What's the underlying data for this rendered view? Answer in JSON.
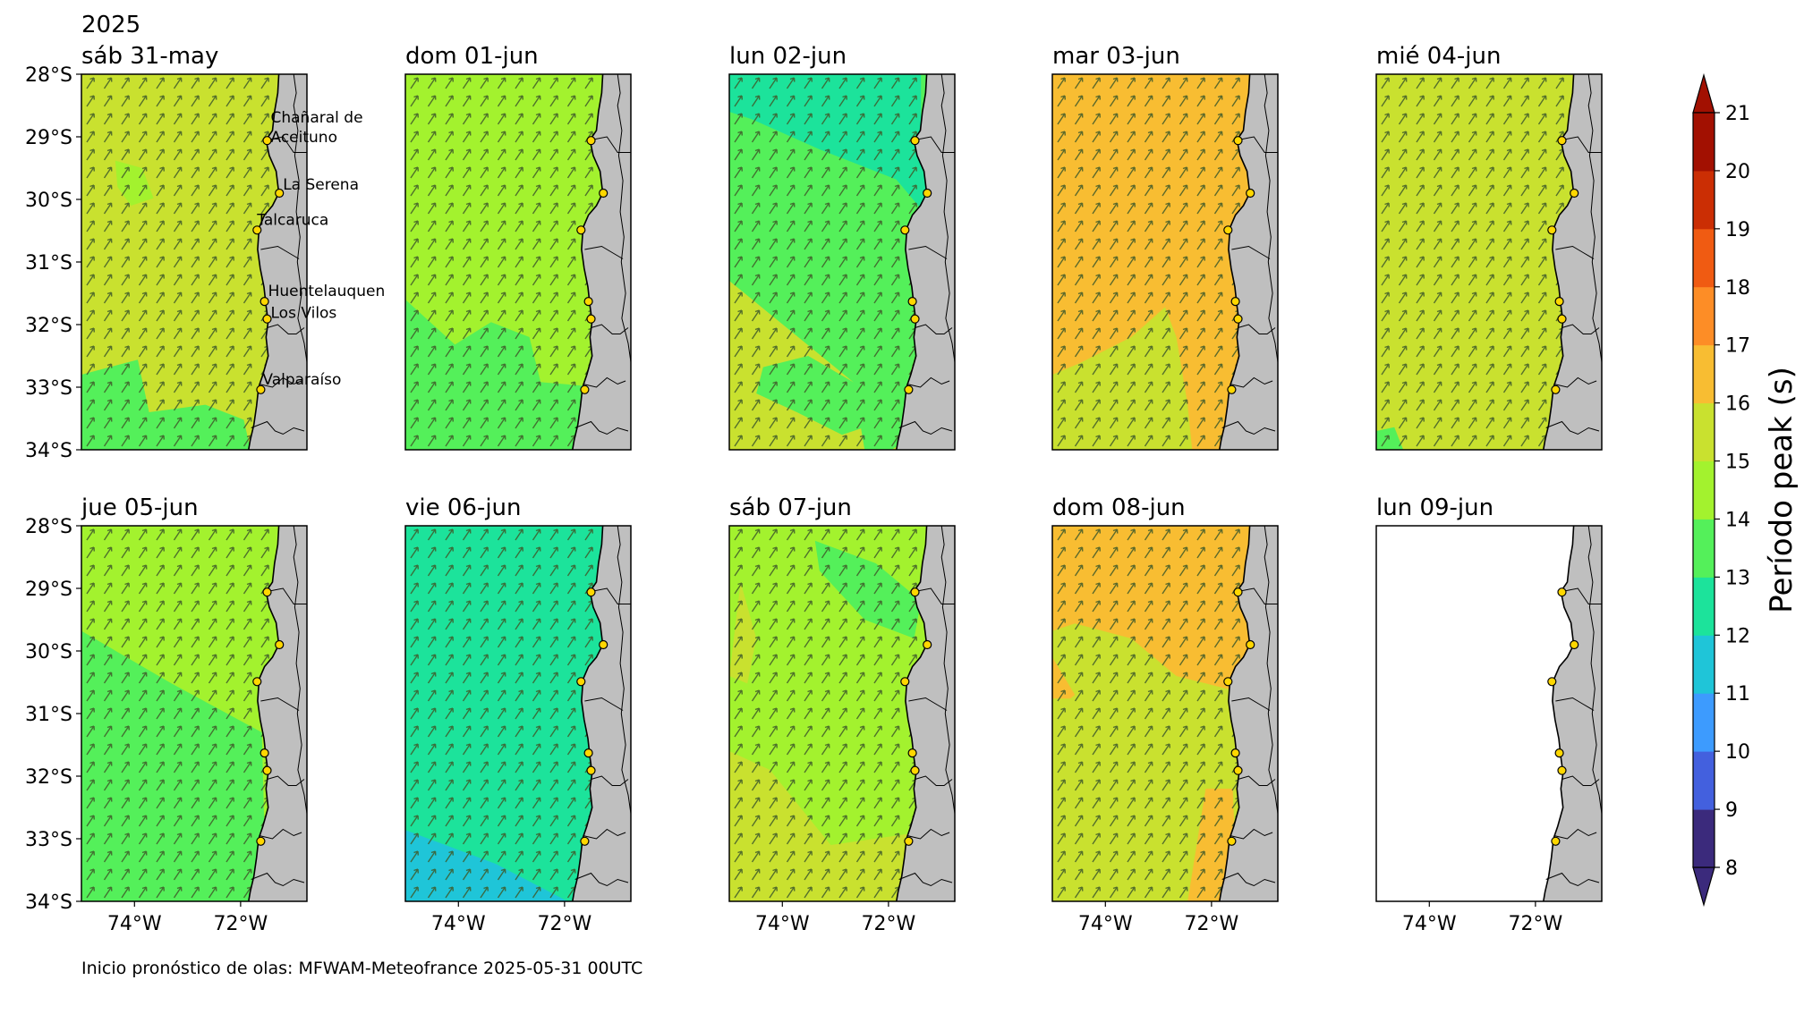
{
  "year": "2025",
  "panels": [
    {
      "title": "sáb 31-may",
      "fill": "#c9e12f",
      "zones": [
        {
          "color": "#54f05a",
          "pts": [
            [
              0,
              0.8
            ],
            [
              0.25,
              0.76
            ],
            [
              0.3,
              0.9
            ],
            [
              0.55,
              0.88
            ],
            [
              0.72,
              0.92
            ],
            [
              0.75,
              1
            ],
            [
              0,
              1
            ]
          ]
        },
        {
          "color": "#a3f22e",
          "pts": [
            [
              0.15,
              0.23
            ],
            [
              0.27,
              0.25
            ],
            [
              0.32,
              0.33
            ],
            [
              0.22,
              0.35
            ],
            [
              0.16,
              0.3
            ]
          ]
        }
      ]
    },
    {
      "title": "dom 01-jun",
      "fill": "#a3f22e",
      "zones": [
        {
          "color": "#54f05a",
          "pts": [
            [
              0,
              0.6
            ],
            [
              0.22,
              0.72
            ],
            [
              0.38,
              0.66
            ],
            [
              0.55,
              0.7
            ],
            [
              0.6,
              0.82
            ],
            [
              0.8,
              0.83
            ],
            [
              0.82,
              1
            ],
            [
              0,
              1
            ]
          ]
        }
      ]
    },
    {
      "title": "lun 02-jun",
      "fill": "#c9e12f",
      "zones": [
        {
          "color": "#54f05a",
          "pts": [
            [
              0,
              0
            ],
            [
              0.88,
              0
            ],
            [
              0.86,
              0.4
            ],
            [
              0.9,
              0.6
            ],
            [
              0.8,
              0.8
            ],
            [
              0.85,
              0.95
            ],
            [
              0.72,
              1
            ],
            [
              0.6,
              1
            ],
            [
              0.55,
              0.82
            ],
            [
              0,
              0.55
            ]
          ]
        },
        {
          "color": "#1ce39b",
          "pts": [
            [
              0,
              0
            ],
            [
              0.85,
              0
            ],
            [
              0.85,
              0.12
            ],
            [
              0.88,
              0.38
            ],
            [
              0.74,
              0.28
            ],
            [
              0.4,
              0.2
            ],
            [
              0.1,
              0.12
            ],
            [
              0,
              0.1
            ]
          ]
        },
        {
          "color": "#54f05a",
          "pts": [
            [
              0.15,
              0.78
            ],
            [
              0.35,
              0.75
            ],
            [
              0.55,
              0.82
            ],
            [
              0.65,
              0.93
            ],
            [
              0.5,
              0.96
            ],
            [
              0.3,
              0.9
            ],
            [
              0.12,
              0.85
            ]
          ]
        }
      ]
    },
    {
      "title": "mar 03-jun",
      "fill": "#f8bd32",
      "zones": [
        {
          "color": "#c9e12f",
          "pts": [
            [
              0,
              0.8
            ],
            [
              0.12,
              0.77
            ],
            [
              0.35,
              0.7
            ],
            [
              0.5,
              0.62
            ],
            [
              0.55,
              0.7
            ],
            [
              0.6,
              0.88
            ],
            [
              0.62,
              1
            ],
            [
              0,
              1
            ]
          ]
        }
      ]
    },
    {
      "title": "mié 04-jun",
      "fill": "#c9e12f",
      "zones": [
        {
          "color": "#54f05a",
          "pts": [
            [
              0,
              0.95
            ],
            [
              0.08,
              0.94
            ],
            [
              0.12,
              1
            ],
            [
              0,
              1
            ]
          ]
        }
      ]
    },
    {
      "title": "jue 05-jun",
      "fill": "#a3f22e",
      "zones": [
        {
          "color": "#54f05a",
          "pts": [
            [
              0,
              0.28
            ],
            [
              0.4,
              0.42
            ],
            [
              0.8,
              0.55
            ],
            [
              0.82,
              1
            ],
            [
              0,
              1
            ]
          ]
        }
      ]
    },
    {
      "title": "vie 06-jun",
      "fill": "#1ce39b",
      "zones": [
        {
          "color": "#1fc5d8",
          "pts": [
            [
              0,
              0.81
            ],
            [
              0.4,
              0.9
            ],
            [
              0.72,
              1
            ],
            [
              0,
              1
            ]
          ]
        }
      ]
    },
    {
      "title": "sáb 07-jun",
      "fill": "#a3f22e",
      "zones": [
        {
          "color": "#54f05a",
          "pts": [
            [
              0.38,
              0.04
            ],
            [
              0.65,
              0.1
            ],
            [
              0.85,
              0.2
            ],
            [
              0.82,
              0.3
            ],
            [
              0.6,
              0.25
            ],
            [
              0.4,
              0.12
            ]
          ]
        },
        {
          "color": "#c9e12f",
          "pts": [
            [
              0,
              0.6
            ],
            [
              0.18,
              0.65
            ],
            [
              0.45,
              0.85
            ],
            [
              0.8,
              0.82
            ],
            [
              0.82,
              1
            ],
            [
              0,
              1
            ]
          ]
        },
        {
          "color": "#c9e12f",
          "pts": [
            [
              0.05,
              0.15
            ],
            [
              0.12,
              0.3
            ],
            [
              0.08,
              0.42
            ],
            [
              0,
              0.4
            ]
          ]
        }
      ]
    },
    {
      "title": "dom 08-jun",
      "fill": "#c9e12f",
      "zones": [
        {
          "color": "#f8bd32",
          "pts": [
            [
              0,
              0
            ],
            [
              0.9,
              0
            ],
            [
              0.88,
              0.45
            ],
            [
              0.55,
              0.4
            ],
            [
              0.35,
              0.3
            ],
            [
              0.1,
              0.26
            ],
            [
              0,
              0.28
            ]
          ]
        },
        {
          "color": "#f8bd32",
          "pts": [
            [
              0,
              0.35
            ],
            [
              0.1,
              0.45
            ],
            [
              0.08,
              0.46
            ],
            [
              0,
              0.46
            ]
          ]
        },
        {
          "color": "#f8bd32",
          "pts": [
            [
              0.68,
              0.7
            ],
            [
              0.8,
              0.7
            ],
            [
              0.82,
              1
            ],
            [
              0.6,
              1
            ]
          ]
        }
      ]
    },
    {
      "title": "lun 09-jun",
      "fill": "#ffffff",
      "zones": []
    }
  ],
  "y_ticks": [
    "28°S",
    "29°S",
    "30°S",
    "31°S",
    "32°S",
    "33°S",
    "34°S"
  ],
  "x_ticks": [
    "74°W",
    "72°W"
  ],
  "cities": [
    {
      "name": "Chañaral de\nAceituno",
      "lat": -29.06,
      "lon": -71.5
    },
    {
      "name": "La Serena",
      "lat": -29.9,
      "lon": -71.27
    },
    {
      "name": "Talcaruca",
      "lat": -30.49,
      "lon": -71.69
    },
    {
      "name": "Huentelauquen",
      "lat": -31.63,
      "lon": -71.55
    },
    {
      "name": "Los Vilos",
      "lat": -31.91,
      "lon": -71.5
    },
    {
      "name": "Valparaíso",
      "lat": -33.04,
      "lon": -71.62
    }
  ],
  "colorbar": {
    "label": "Período peak (s)",
    "ticks": [
      "8",
      "9",
      "10",
      "11",
      "12",
      "13",
      "14",
      "15",
      "16",
      "17",
      "18",
      "19",
      "20",
      "21"
    ],
    "levels": [
      8,
      9,
      10,
      11,
      12,
      13,
      14,
      15,
      16,
      17,
      18,
      19,
      20,
      21
    ],
    "colors": [
      "#3b2a7c",
      "#4360de",
      "#3d9bfe",
      "#1fc5d8",
      "#1ce39b",
      "#54f05a",
      "#a3f22e",
      "#c9e12f",
      "#f8bd32",
      "#fd8d26",
      "#f05b12",
      "#cb2e04",
      "#a21001"
    ]
  },
  "footer": "Inicio pronóstico de olas: MFWAM-Meteofrance 2025-05-31 00UTC"
}
